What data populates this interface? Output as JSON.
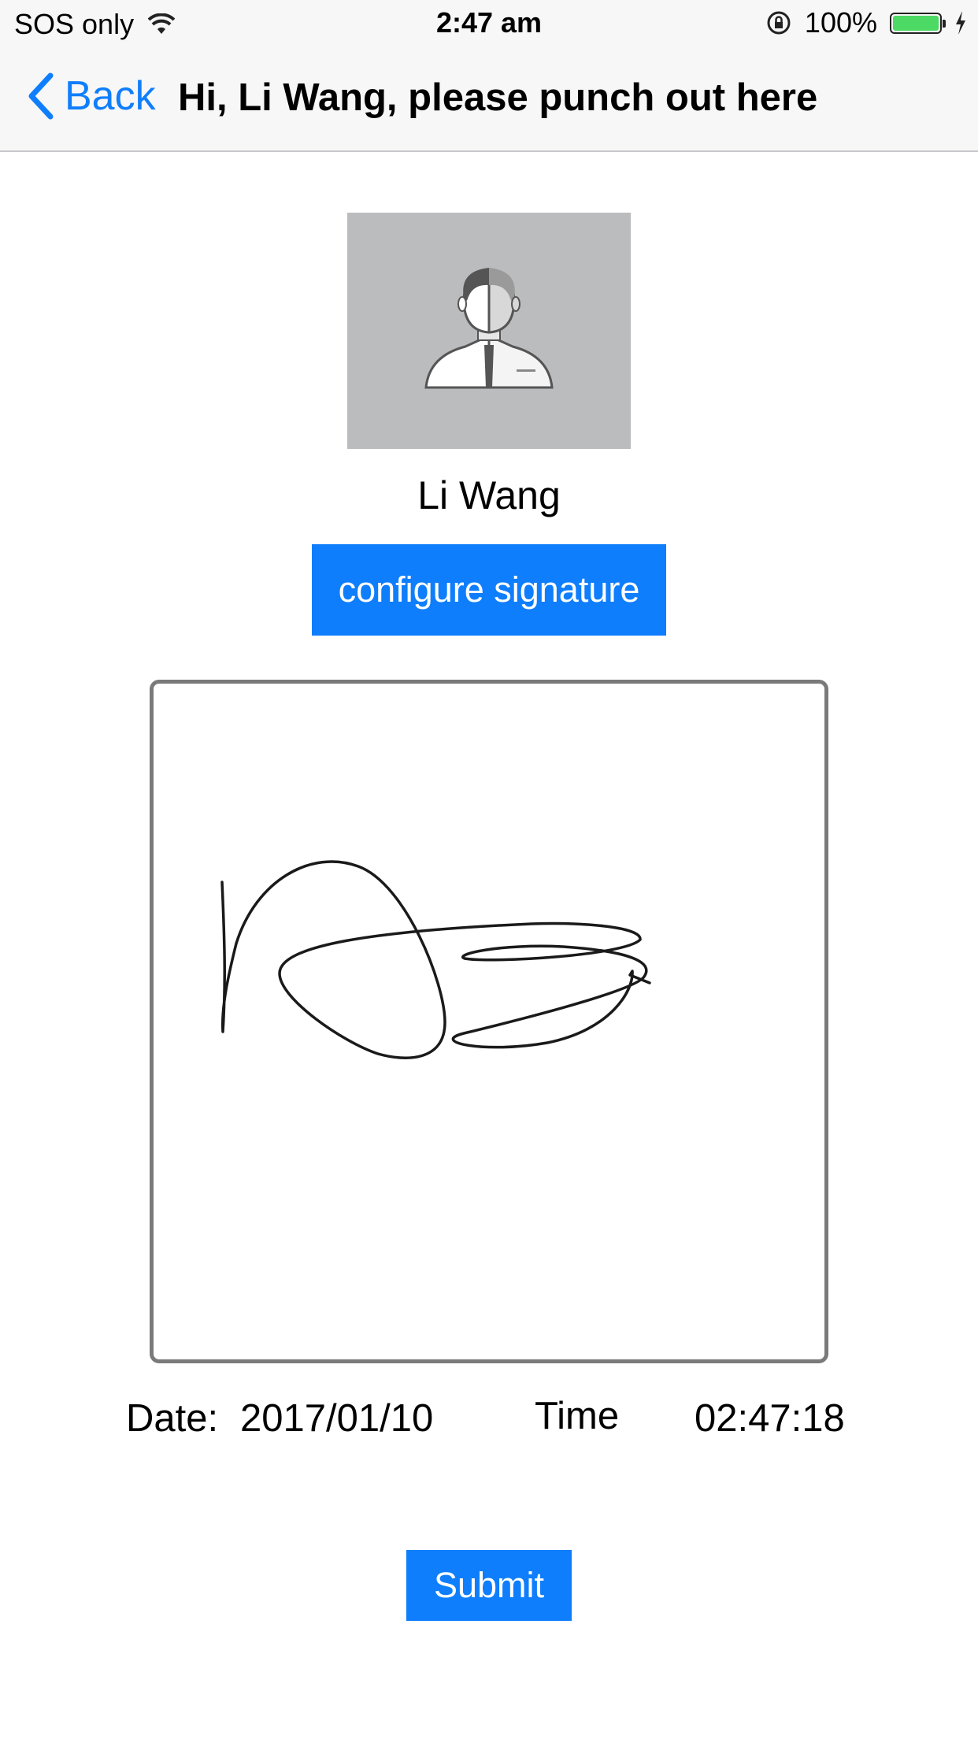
{
  "status_bar": {
    "carrier": "SOS only",
    "time": "2:47 am",
    "battery_percent": "100%",
    "battery_level": 1.0,
    "wifi_icon": "wifi-icon",
    "lock_icon": "orientation-lock-icon",
    "charging_icon": "bolt-icon"
  },
  "nav": {
    "back_label": "Back",
    "title": "Hi, Li Wang, please punch out here"
  },
  "user": {
    "name": "Li Wang",
    "avatar_icon": "user-avatar-icon"
  },
  "actions": {
    "configure_label": "configure signature",
    "submit_label": "Submit"
  },
  "record": {
    "date_label": "Date:",
    "date_value": "2017/01/10",
    "time_label": "Time",
    "time_value": "02:47:18"
  },
  "colors": {
    "accent": "#0f7efc",
    "avatar_bg": "#bbbcbe",
    "pad_border": "#7a7a7a"
  }
}
